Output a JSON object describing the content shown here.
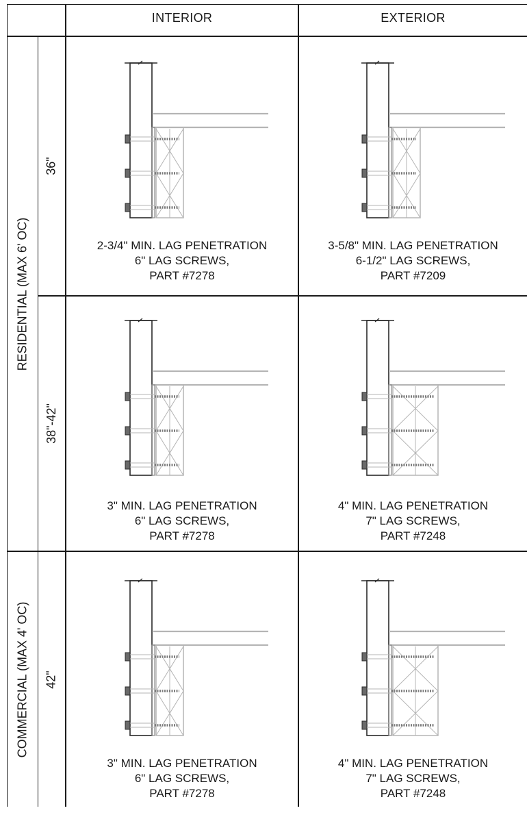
{
  "columns": [
    "INTERIOR",
    "EXTERIOR"
  ],
  "groups": [
    {
      "label": "RESIDENTIAL (MAX 6' OC)",
      "heights": [
        "36\"",
        "38\"-42\""
      ]
    },
    {
      "label": "COMMERCIAL (MAX 4' OC)",
      "heights": [
        "42\""
      ]
    }
  ],
  "rows": [
    {
      "height": "36\"",
      "interior": {
        "line1": "2-3/4\" MIN. LAG PENETRATION",
        "line2": "6\" LAG SCREWS,",
        "line3": "PART #7278",
        "blocking": "narrow"
      },
      "exterior": {
        "line1": "3-5/8\" MIN. LAG PENETRATION",
        "line2": "6-1/2\" LAG SCREWS,",
        "line3": "PART #7209",
        "blocking": "narrow"
      }
    },
    {
      "height": "38\"-42\"",
      "interior": {
        "line1": "3\" MIN. LAG PENETRATION",
        "line2": "6\" LAG SCREWS,",
        "line3": "PART #7278",
        "blocking": "narrow"
      },
      "exterior": {
        "line1": "4\" MIN. LAG PENETRATION",
        "line2": "7\" LAG SCREWS,",
        "line3": "PART #7248",
        "blocking": "wide"
      }
    },
    {
      "height": "42\"",
      "interior": {
        "line1": "3\" MIN. LAG PENETRATION",
        "line2": "6\" LAG SCREWS,",
        "line3": "PART #7278",
        "blocking": "narrow"
      },
      "exterior": {
        "line1": "4\" MIN. LAG PENETRATION",
        "line2": "7\" LAG SCREWS,",
        "line3": "PART #7248",
        "blocking": "wide"
      }
    }
  ]
}
